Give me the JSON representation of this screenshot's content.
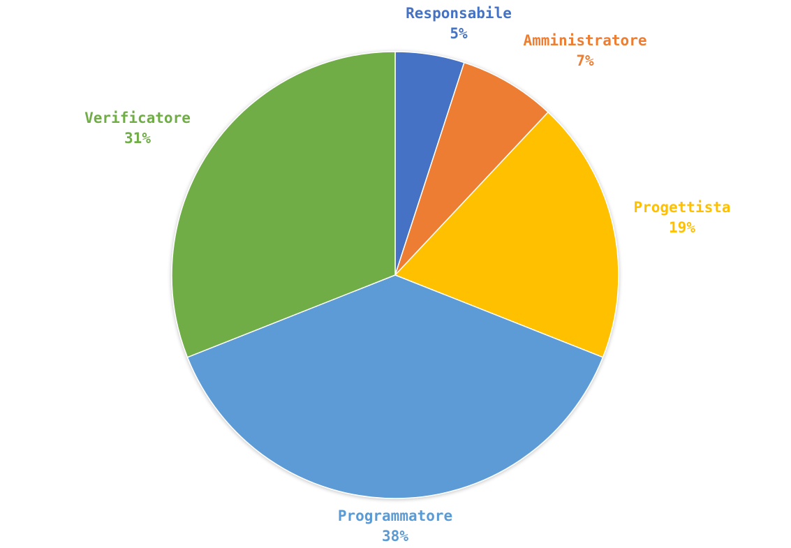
{
  "chart_data": {
    "type": "pie",
    "title": "",
    "slices": [
      {
        "label": "Responsabile",
        "value": 5,
        "pct_label": "5%",
        "color": "#4472C4"
      },
      {
        "label": "Amministratore",
        "value": 7,
        "pct_label": "7%",
        "color": "#ED7D31"
      },
      {
        "label": "Progettista",
        "value": 19,
        "pct_label": "19%",
        "color": "#FFC000"
      },
      {
        "label": "Programmatore",
        "value": 38,
        "pct_label": "38%",
        "color": "#5B9BD5"
      },
      {
        "label": "Verificatore",
        "value": 31,
        "pct_label": "31%",
        "color": "#70AD47"
      }
    ],
    "start_angle": "12 o'clock",
    "direction": "clockwise",
    "legend": "none",
    "data_labels": "outside, category name and percentage, colored by slice"
  }
}
